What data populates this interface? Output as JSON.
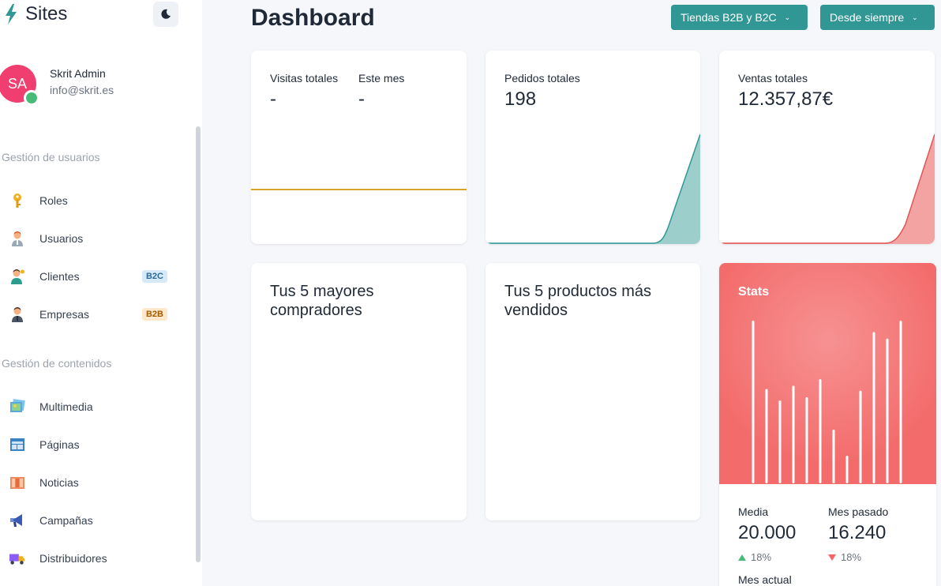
{
  "brand": {
    "title": "Sites"
  },
  "user": {
    "initials": "SA",
    "name": "Skrit Admin",
    "email": "info@skrit.es"
  },
  "sidebar": {
    "sections": [
      {
        "title": "Gestión de usuarios"
      },
      {
        "title": "Gestión de contenidos"
      }
    ],
    "items": [
      {
        "label": "Roles",
        "icon": "key-icon"
      },
      {
        "label": "Usuarios",
        "icon": "user-icon"
      },
      {
        "label": "Clientes",
        "icon": "client-icon",
        "badge": "B2C"
      },
      {
        "label": "Empresas",
        "icon": "business-user-icon",
        "badge": "B2B"
      },
      {
        "label": "Multimedia",
        "icon": "image-icon"
      },
      {
        "label": "Páginas",
        "icon": "layout-icon"
      },
      {
        "label": "Noticias",
        "icon": "newspaper-icon"
      },
      {
        "label": "Campañas",
        "icon": "megaphone-icon"
      },
      {
        "label": "Distribuidores",
        "icon": "truck-icon"
      }
    ]
  },
  "header": {
    "title": "Dashboard",
    "store_filter": "Tiendas B2B y B2C",
    "time_filter": "Desde siempre"
  },
  "cards": {
    "visits": {
      "label": "Visitas totales",
      "value": "-",
      "month_label": "Este mes",
      "month_value": "-",
      "line_color": "#d4a72c"
    },
    "orders": {
      "label": "Pedidos totales",
      "value": "198",
      "color": "#319795"
    },
    "sales": {
      "label": "Ventas totales",
      "value": "12.357,87€",
      "color": "#e05555"
    },
    "buyers": {
      "title": "Tus 5 mayores compradores"
    },
    "products": {
      "title": "Tus 5 productos más vendidos"
    }
  },
  "stats": {
    "title": "Stats",
    "bars": [
      100,
      58,
      51,
      60,
      53,
      64,
      33,
      17,
      57,
      93,
      89,
      100
    ],
    "average": {
      "label": "Media",
      "value": "20.000",
      "pct": "18%",
      "trend": "up"
    },
    "last_month": {
      "label": "Mes pasado",
      "value": "16.240",
      "pct": "18%",
      "trend": "down"
    },
    "current_month": {
      "label": "Mes actual"
    }
  },
  "colors": {
    "accent": "#319795",
    "avatar": "#f03e70",
    "online": "#48bb78"
  }
}
